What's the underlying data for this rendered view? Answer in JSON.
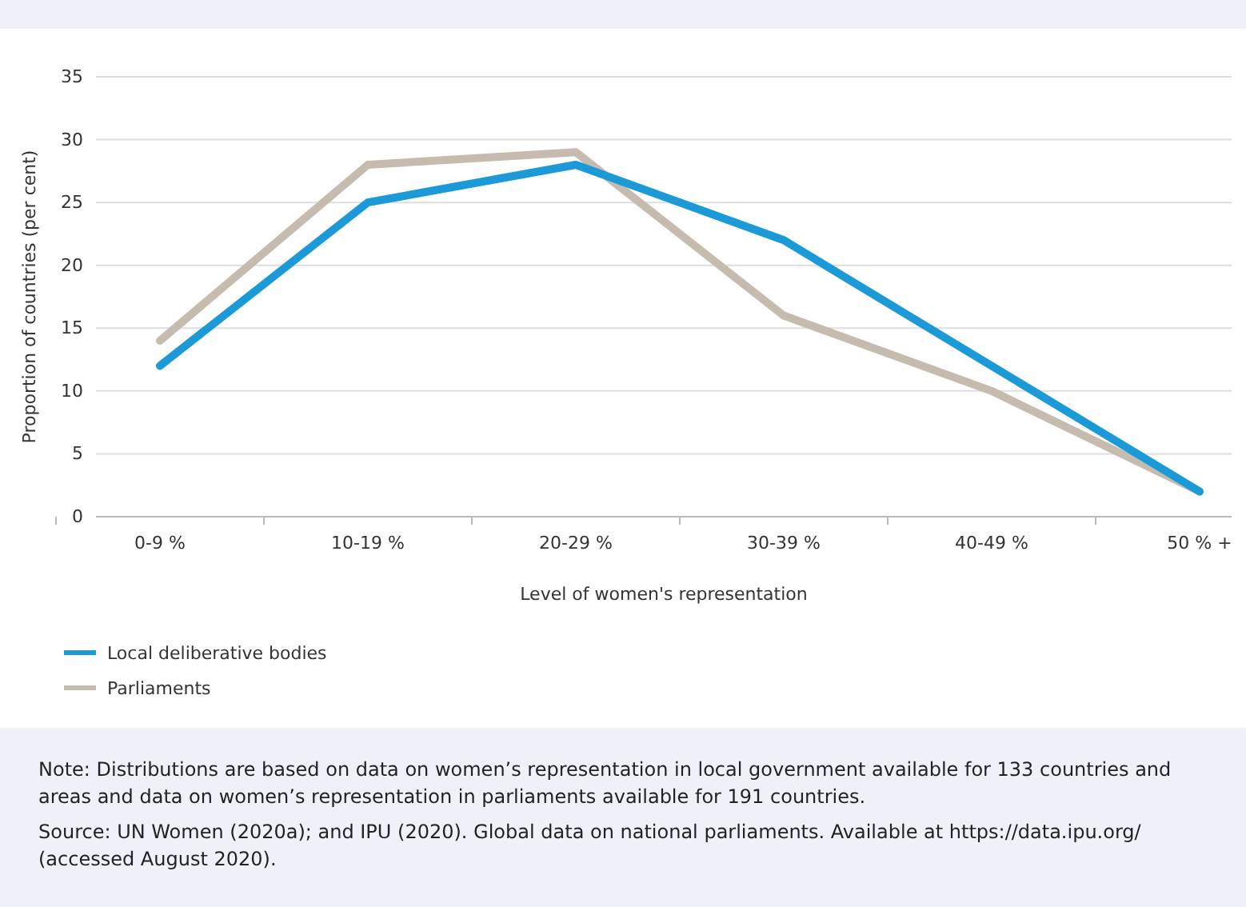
{
  "chart_data": {
    "type": "line",
    "xlabel": "Level of women's representation",
    "ylabel": "Proportion of countries (per cent)",
    "categories": [
      "0-9 %",
      "10-19 %",
      "20-29 %",
      "30-39 %",
      "40-49 %",
      "50 % +"
    ],
    "series": [
      {
        "name": "Local deliberative bodies",
        "color": "#1b9ad7",
        "values": [
          12,
          25,
          28,
          22,
          12,
          2
        ]
      },
      {
        "name": "Parliaments",
        "color": "#c5bcaf",
        "values": [
          14,
          28,
          29,
          16,
          10,
          2
        ]
      }
    ],
    "ylim": [
      0,
      35
    ],
    "yticks": [
      0,
      5,
      10,
      15,
      20,
      25,
      30,
      35
    ],
    "grid": "y",
    "legend": "bottom",
    "marker": "none",
    "line_style": "solid",
    "annotations": [
      "Note: Distributions are based on data on women’s representation in local government available for 133 countries and areas and data on women’s representation in parliaments available for 191 countries.",
      "Source: UN Women (2020a); and IPU (2020). Global data on national parliaments. Available at https://data.ipu.org/ (accessed August 2020)."
    ]
  }
}
